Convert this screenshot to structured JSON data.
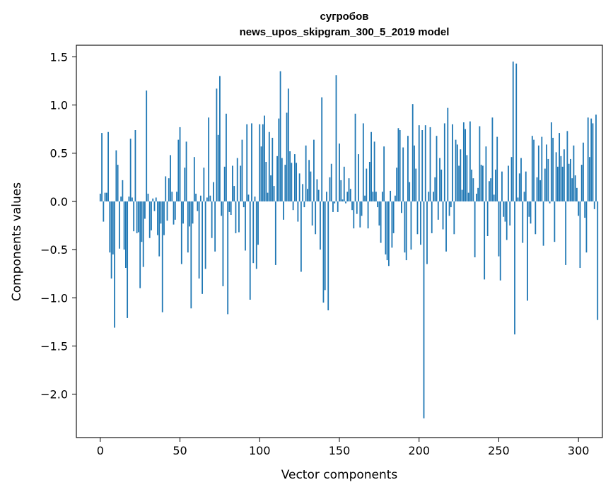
{
  "chart_data": {
    "type": "bar",
    "title": "сугробов",
    "subtitle": "news_upos_skipgram_300_5_2019 model",
    "xlabel": "Vector components",
    "ylabel": "Components values",
    "xlim": [
      -15,
      315
    ],
    "ylim": [
      -2.45,
      1.62
    ],
    "x_ticks": [
      0,
      50,
      100,
      150,
      200,
      250,
      300
    ],
    "x_tick_labels": [
      "0",
      "50",
      "100",
      "150",
      "200",
      "250",
      "300"
    ],
    "y_ticks": [
      1.5,
      1.0,
      0.5,
      0.0,
      -0.5,
      -1.0,
      -1.5,
      -2.0
    ],
    "y_tick_labels": [
      "1.5",
      "1.0",
      "0.5",
      "0.0",
      "−0.5",
      "−1.0",
      "−1.5",
      "−2.0"
    ],
    "bar_color": "#1f77b4",
    "grid": false,
    "legend": false,
    "values": [
      0.08,
      0.71,
      -0.21,
      0.09,
      0.09,
      0.72,
      -0.53,
      -0.8,
      -0.55,
      -1.31,
      0.53,
      0.38,
      -0.49,
      0.05,
      0.22,
      -0.5,
      -0.69,
      -1.21,
      0.05,
      0.65,
      0.04,
      -0.31,
      0.74,
      -0.33,
      -0.32,
      -0.9,
      -0.42,
      -0.68,
      -0.18,
      1.15,
      0.08,
      -0.38,
      -0.3,
      0.03,
      -0.1,
      0.04,
      -0.35,
      -0.57,
      -0.23,
      -1.15,
      -0.35,
      0.26,
      -0.2,
      0.24,
      0.48,
      0.1,
      -0.24,
      -0.19,
      0.1,
      0.64,
      0.77,
      -0.65,
      -0.23,
      0.35,
      0.62,
      -0.53,
      -0.26,
      -1.11,
      -0.23,
      0.46,
      0.08,
      -0.1,
      -0.8,
      0.06,
      -0.96,
      0.35,
      -0.7,
      0.04,
      0.87,
      0.06,
      -0.38,
      0.2,
      -0.52,
      1.17,
      0.69,
      1.3,
      -0.15,
      -0.88,
      0.36,
      0.91,
      -1.17,
      -0.11,
      -0.14,
      0.37,
      0.16,
      -0.33,
      0.45,
      -0.32,
      0.37,
      0.64,
      -0.06,
      -0.51,
      0.8,
      0.07,
      -1.02,
      0.81,
      -0.64,
      0.05,
      -0.7,
      -0.45,
      0.8,
      0.57,
      0.8,
      0.89,
      0.41,
      0.09,
      0.72,
      0.27,
      0.66,
      0.16,
      -0.66,
      0.47,
      0.86,
      1.35,
      0.45,
      -0.19,
      0.38,
      0.92,
      1.17,
      0.52,
      0.4,
      -0.09,
      0.49,
      0.4,
      -0.21,
      0.29,
      -0.73,
      0.18,
      -0.06,
      0.58,
      0.13,
      0.43,
      0.31,
      -0.25,
      0.64,
      -0.34,
      0.23,
      0.12,
      -0.5,
      1.08,
      -1.05,
      -0.92,
      0.1,
      -1.13,
      0.25,
      0.39,
      -0.11,
      -0.02,
      1.31,
      -0.11,
      0.6,
      0.22,
      0.02,
      0.36,
      -0.02,
      0.1,
      0.24,
      0.13,
      -0.09,
      -0.28,
      0.91,
      -0.13,
      0.49,
      -0.27,
      -0.15,
      0.81,
      0.06,
      0.34,
      -0.28,
      0.41,
      0.72,
      0.1,
      0.62,
      0.1,
      -0.06,
      -0.25,
      -0.43,
      0.1,
      0.57,
      -0.55,
      -0.61,
      -0.67,
      0.11,
      -0.48,
      -0.33,
      0.06,
      0.35,
      0.76,
      0.74,
      -0.12,
      0.56,
      -0.53,
      -0.61,
      0.68,
      0.2,
      -0.5,
      1.01,
      0.58,
      0.34,
      -0.34,
      0.79,
      -0.45,
      0.74,
      -2.25,
      0.79,
      -0.65,
      0.1,
      0.77,
      -0.33,
      0.1,
      0.25,
      0.68,
      -0.19,
      0.45,
      0.33,
      -0.29,
      0.81,
      -0.52,
      0.97,
      -0.15,
      -0.06,
      0.8,
      -0.34,
      0.64,
      0.59,
      0.37,
      0.54,
      0.12,
      0.82,
      0.75,
      0.48,
      0.09,
      0.83,
      0.33,
      0.24,
      -0.58,
      0.08,
      0.14,
      0.78,
      0.38,
      0.37,
      -0.81,
      0.57,
      -0.36,
      0.21,
      0.24,
      0.87,
      0.07,
      0.33,
      0.67,
      -0.57,
      -0.82,
      0.31,
      -0.16,
      -0.21,
      -0.4,
      0.37,
      -0.25,
      0.46,
      1.45,
      -1.38,
      1.43,
      0.04,
      0.29,
      0.45,
      -0.43,
      0.1,
      0.31,
      -1.03,
      -0.16,
      -0.23,
      0.68,
      0.64,
      -0.34,
      0.25,
      0.58,
      0.22,
      0.67,
      -0.46,
      0.34,
      0.59,
      0.44,
      -0.02,
      0.82,
      0.66,
      -0.42,
      0.51,
      0.36,
      0.71,
      0.47,
      0.36,
      0.54,
      -0.66,
      0.73,
      0.39,
      0.44,
      0.24,
      0.58,
      0.27,
      0.14,
      -0.15,
      -0.69,
      0.38,
      0.61,
      -0.17,
      -0.53,
      0.87,
      0.46,
      0.86,
      0.81,
      -0.08,
      0.9,
      -1.23
    ]
  }
}
